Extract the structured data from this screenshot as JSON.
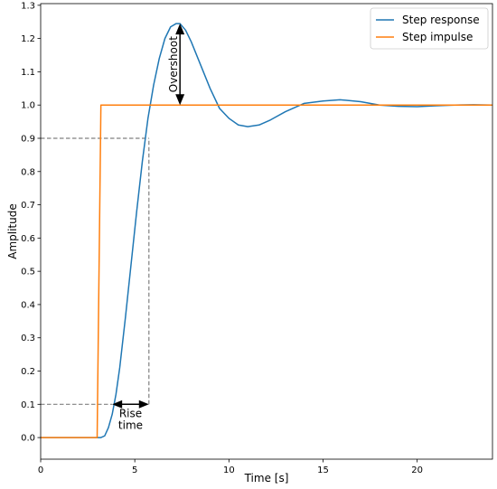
{
  "chart_data": {
    "type": "line",
    "xlabel": "Time [s]",
    "ylabel": "Amplitude",
    "xlim": [
      0,
      24
    ],
    "ylim": [
      -0.065,
      1.305
    ],
    "xticks": [
      0,
      5,
      10,
      15,
      20
    ],
    "yticks": [
      0.0,
      0.1,
      0.2,
      0.3,
      0.4,
      0.5,
      0.6,
      0.7,
      0.8,
      0.9,
      1.0,
      1.1,
      1.2,
      1.3
    ],
    "legend_position": "top-right",
    "grid": false,
    "series": [
      {
        "name": "Step response",
        "color": "#1f77b4",
        "x": [
          0,
          3.0,
          3.1,
          3.2,
          3.4,
          3.6,
          3.8,
          4.0,
          4.2,
          4.5,
          4.8,
          5.1,
          5.4,
          5.7,
          6.0,
          6.3,
          6.6,
          6.9,
          7.2,
          7.4,
          7.7,
          8.0,
          8.5,
          9.0,
          9.5,
          10.0,
          10.5,
          11.0,
          11.6,
          12.2,
          13.0,
          14.0,
          15.0,
          15.9,
          17.0,
          18.0,
          19.0,
          20.0,
          21.0,
          22.0,
          23.0,
          24.0
        ],
        "y": [
          0,
          0,
          0,
          0.0,
          0.005,
          0.03,
          0.07,
          0.13,
          0.21,
          0.36,
          0.52,
          0.68,
          0.83,
          0.96,
          1.06,
          1.14,
          1.2,
          1.235,
          1.245,
          1.245,
          1.225,
          1.19,
          1.12,
          1.05,
          0.99,
          0.96,
          0.94,
          0.935,
          0.94,
          0.955,
          0.98,
          1.005,
          1.012,
          1.016,
          1.01,
          1.0,
          0.996,
          0.995,
          0.998,
          1.0,
          1.001,
          1.0
        ]
      },
      {
        "name": "Step impulse",
        "color": "#ff7f0e",
        "x": [
          0,
          3.0,
          3.2,
          24
        ],
        "y": [
          0,
          0,
          1.0,
          1.0
        ]
      }
    ],
    "annotations": [
      {
        "id": "overshoot",
        "text": "Overshoot",
        "x": 7.4,
        "y_from": 1.0,
        "y_to": 1.245
      },
      {
        "id": "rise",
        "text_line1": "Rise",
        "text_line2": "time",
        "x_from": 3.8,
        "x_to": 5.75,
        "y": 0.1
      }
    ],
    "reference_lines": [
      {
        "type": "h",
        "y": 0.9,
        "x_from": 0,
        "x_to": 5.75
      },
      {
        "type": "v",
        "x": 5.75,
        "y_from": 0.1,
        "y_to": 0.9
      },
      {
        "type": "h",
        "y": 0.1,
        "x_from": 0,
        "x_to": 3.8
      }
    ]
  }
}
